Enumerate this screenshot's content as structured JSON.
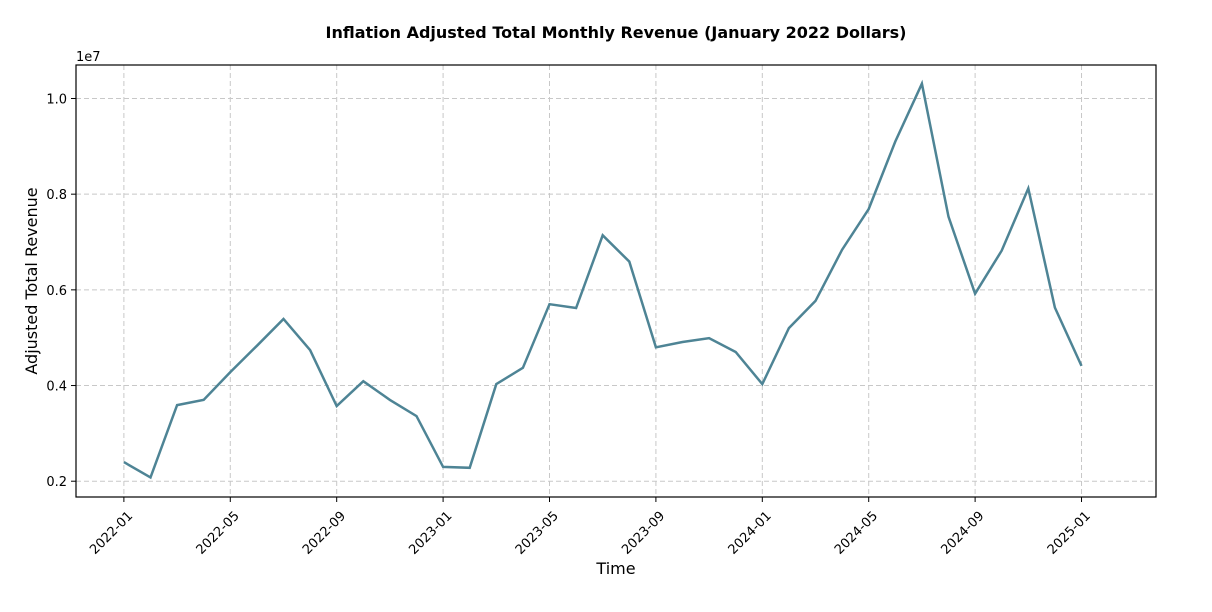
{
  "chart_data": {
    "type": "line",
    "title": "Inflation Adjusted Total Monthly Revenue (January 2022 Dollars)",
    "xlabel": "Time",
    "ylabel": "Adjusted Total Revenue",
    "y_offset_label": "1e7",
    "y_scale": 10000000,
    "ylim": [
      0.167,
      1.07
    ],
    "yticks": [
      0.2,
      0.4,
      0.6,
      0.8,
      1.0
    ],
    "ytick_labels": [
      "0.2",
      "0.4",
      "0.6",
      "0.8",
      "1.0"
    ],
    "xlim_months": [
      -1.8,
      38.8
    ],
    "xticks_months": [
      0,
      4,
      8,
      12,
      16,
      20,
      24,
      28,
      32,
      36
    ],
    "xtick_labels": [
      "2022-01",
      "2022-05",
      "2022-09",
      "2023-01",
      "2023-05",
      "2023-09",
      "2024-01",
      "2024-05",
      "2024-09",
      "2025-01"
    ],
    "grid": true,
    "line_color": "#4e8495",
    "series": [
      {
        "name": "Adjusted Total Revenue",
        "x": [
          "2022-01",
          "2022-02",
          "2022-03",
          "2022-04",
          "2022-05",
          "2022-06",
          "2022-07",
          "2022-08",
          "2022-09",
          "2022-10",
          "2022-11",
          "2022-12",
          "2023-01",
          "2023-02",
          "2023-03",
          "2023-04",
          "2023-05",
          "2023-06",
          "2023-07",
          "2023-08",
          "2023-09",
          "2023-10",
          "2023-11",
          "2023-12",
          "2024-01",
          "2024-02",
          "2024-03",
          "2024-04",
          "2024-05",
          "2024-06",
          "2024-07",
          "2024-08",
          "2024-09",
          "2024-10",
          "2024-11",
          "2024-12",
          "2025-01"
        ],
        "values": [
          0.24,
          0.208,
          0.359,
          0.37,
          0.428,
          0.483,
          0.539,
          0.474,
          0.357,
          0.409,
          0.37,
          0.336,
          0.23,
          0.228,
          0.403,
          0.437,
          0.57,
          0.562,
          0.714,
          0.659,
          0.48,
          0.491,
          0.499,
          0.47,
          0.403,
          0.52,
          0.577,
          0.684,
          0.769,
          0.91,
          1.031,
          0.753,
          0.592,
          0.682,
          0.812,
          0.563,
          0.441
        ]
      }
    ]
  }
}
